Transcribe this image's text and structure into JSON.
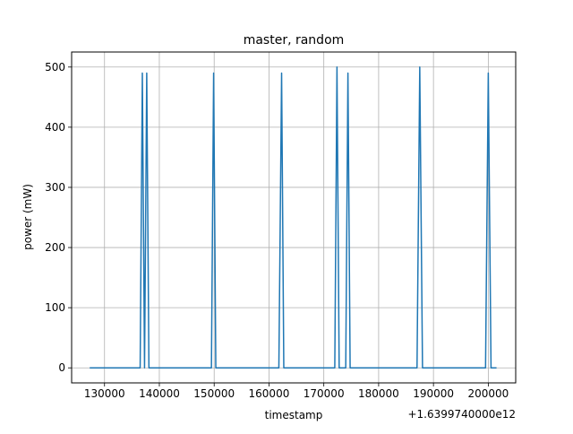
{
  "chart_data": {
    "type": "line",
    "title": "master, random",
    "xlabel": "timestamp",
    "ylabel": "power (mW)",
    "x_offset_label": "+1.6399740000e12",
    "xlim": [
      124000,
      205000
    ],
    "ylim": [
      -25,
      525
    ],
    "xticks": [
      130000,
      140000,
      150000,
      160000,
      170000,
      180000,
      190000,
      200000
    ],
    "xtick_labels": [
      "130000",
      "140000",
      "150000",
      "160000",
      "170000",
      "180000",
      "190000",
      "200000"
    ],
    "yticks": [
      0,
      100,
      200,
      300,
      400,
      500
    ],
    "ytick_labels": [
      "0",
      "100",
      "200",
      "300",
      "400",
      "500"
    ],
    "grid": true,
    "colors": {
      "line": "#1f77b4",
      "grid": "#b0b0b0",
      "axes": "#000000"
    },
    "series": [
      {
        "x": [
          127300,
          136500,
          136900,
          137300,
          137700,
          138100,
          138500,
          149500,
          149900,
          150300,
          161800,
          162300,
          162700,
          172000,
          172400,
          172800,
          174000,
          174400,
          174800,
          187000,
          187500,
          188000,
          199500,
          200000,
          200500,
          201500
        ],
        "y": [
          0,
          0,
          490,
          0,
          490,
          0,
          0,
          0,
          490,
          0,
          0,
          490,
          0,
          0,
          500,
          0,
          0,
          490,
          0,
          0,
          500,
          0,
          0,
          490,
          0,
          0
        ]
      }
    ]
  }
}
